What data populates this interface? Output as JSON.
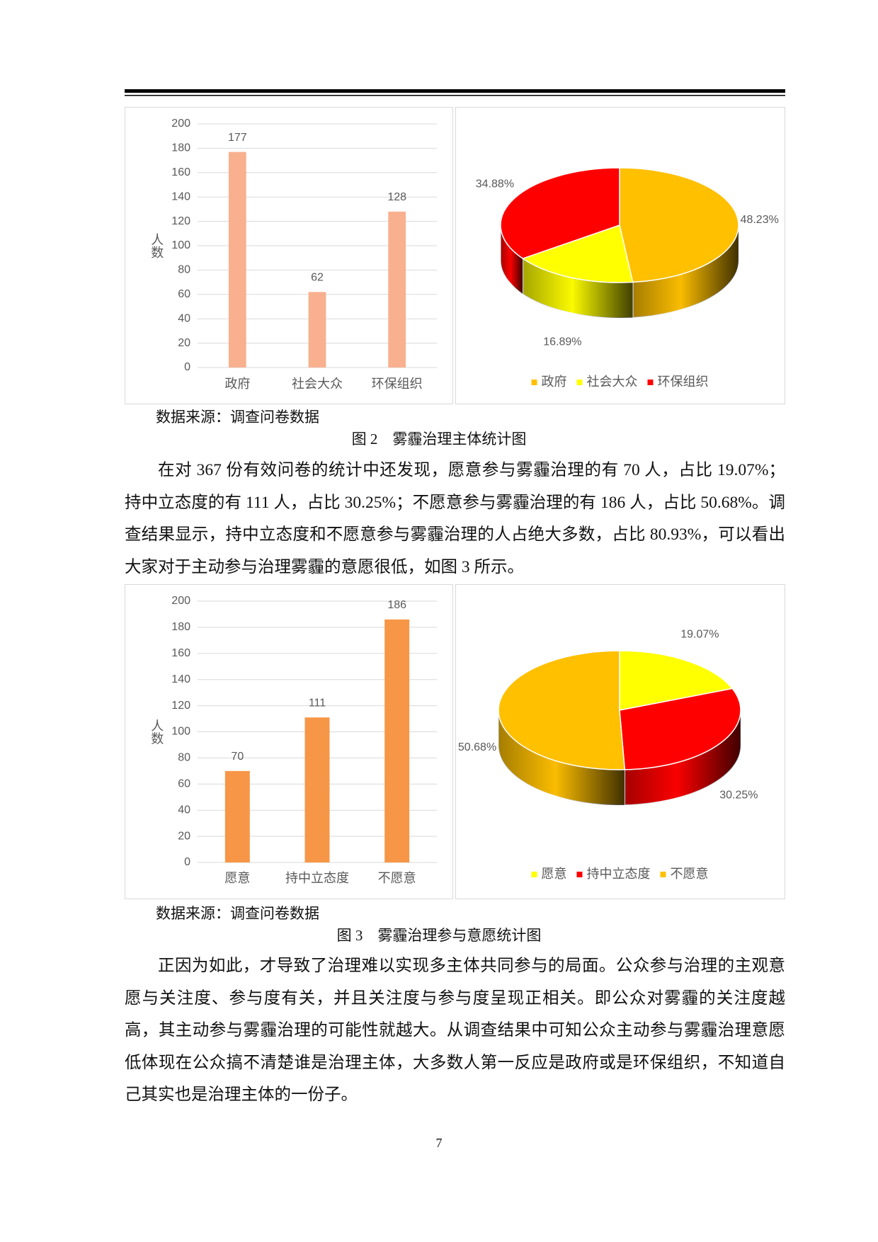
{
  "chart_data": [
    {
      "type": "bar",
      "y_label": "人数",
      "categories": [
        "政府",
        "社会大众",
        "环保组织"
      ],
      "values": [
        177,
        62,
        128
      ],
      "color": "#F8B08F",
      "ylim": [
        0,
        200
      ],
      "yticks": [
        0,
        20,
        40,
        60,
        80,
        100,
        120,
        140,
        160,
        180,
        200
      ],
      "grid": true
    },
    {
      "type": "pie",
      "categories": [
        "政府",
        "社会大众",
        "环保组织"
      ],
      "values": [
        48.23,
        16.89,
        34.88
      ],
      "value_labels": [
        "48.23%",
        "16.89%",
        "34.88%"
      ],
      "colors": [
        "#FFC000",
        "#FFFF00",
        "#FF0000"
      ],
      "legend": "bottom"
    },
    {
      "type": "bar",
      "y_label": "人数",
      "categories": [
        "愿意",
        "持中立态度",
        "不愿意"
      ],
      "values": [
        70,
        111,
        186
      ],
      "color": "#F79646",
      "ylim": [
        0,
        200
      ],
      "yticks": [
        0,
        20,
        40,
        60,
        80,
        100,
        120,
        140,
        160,
        180,
        200
      ],
      "grid": true
    },
    {
      "type": "pie",
      "categories": [
        "愿意",
        "持中立态度",
        "不愿意"
      ],
      "values": [
        19.07,
        30.25,
        50.68
      ],
      "value_labels": [
        "19.07%",
        "30.25%",
        "50.68%"
      ],
      "colors": [
        "#FFFF00",
        "#FF0000",
        "#FFC000"
      ],
      "legend": "bottom"
    }
  ],
  "document": {
    "figure2": {
      "source": "数据来源：调查问卷数据",
      "caption": "图 2　雾霾治理主体统计图"
    },
    "paragraphs": [
      "在对 367 份有效问卷的统计中还发现，愿意参与雾霾治理的有 70 人，占比 19.07%；持中立态度的有 111 人，占比 30.25%；不愿意参与雾霾治理的有 186 人，占比 50.68%。调查结果显示，持中立态度和不愿意参与雾霾治理的人占绝大多数，占比 80.93%，可以看出大家对于主动参与治理雾霾的意愿很低，如图 3 所示。",
      "正因为如此，才导致了治理难以实现多主体共同参与的局面。公众参与治理的主观意愿与关注度、参与度有关，并且关注度与参与度呈现正相关。即公众对雾霾的关注度越高，其主动参与雾霾治理的可能性就越大。从调查结果中可知公众主动参与雾霾治理意愿低体现在公众搞不清楚谁是治理主体，大多数人第一反应是政府或是环保组织，不知道自己其实也是治理主体的一份子。"
    ],
    "figure3": {
      "source": "数据来源：调查问卷数据",
      "caption": "图 3　雾霾治理参与意愿统计图"
    },
    "page_number": 7
  }
}
